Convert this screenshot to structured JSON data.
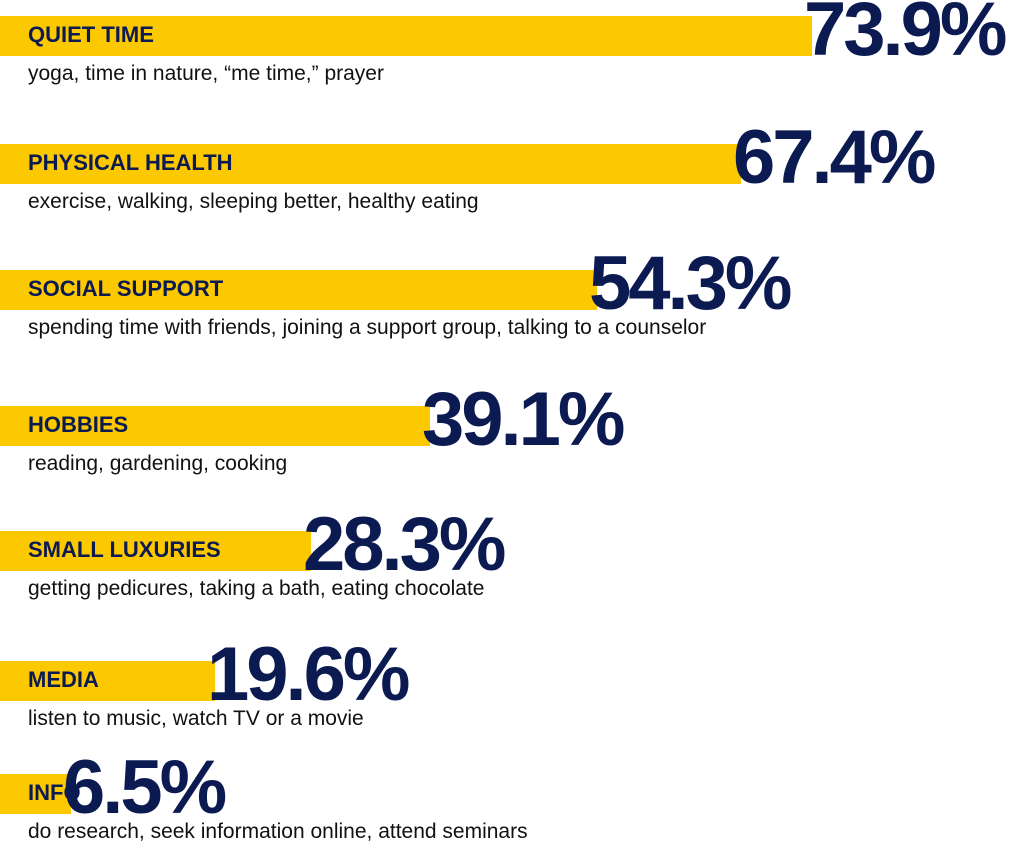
{
  "chart_data": {
    "type": "bar",
    "orientation": "horizontal",
    "categories": [
      "QUIET TIME",
      "PHYSICAL HEALTH",
      "SOCIAL SUPPORT",
      "HOBBIES",
      "SMALL LUXURIES",
      "MEDIA",
      "INFO"
    ],
    "values": [
      73.9,
      67.4,
      54.3,
      39.1,
      28.3,
      19.6,
      6.5
    ],
    "value_labels": [
      "73.9%",
      "67.4%",
      "54.3%",
      "39.1%",
      "28.3%",
      "19.6%",
      "6.5%"
    ],
    "descriptions": [
      "yoga, time in nature, “me time,” prayer",
      "exercise, walking, sleeping better, healthy eating",
      "spending time with friends, joining a support group, talking to a counselor",
      "reading, gardening, cooking",
      "getting pedicures, taking a bath, eating chocolate",
      "listen to music, watch TV or a movie",
      "do research, seek information online, attend seminars"
    ],
    "title": "",
    "xlabel": "",
    "ylabel": "",
    "grid": false,
    "colors": {
      "bar": "#fcc800",
      "value_text": "#0c1a52",
      "category_text": "#0c1a52",
      "description_text": "#111111"
    }
  }
}
